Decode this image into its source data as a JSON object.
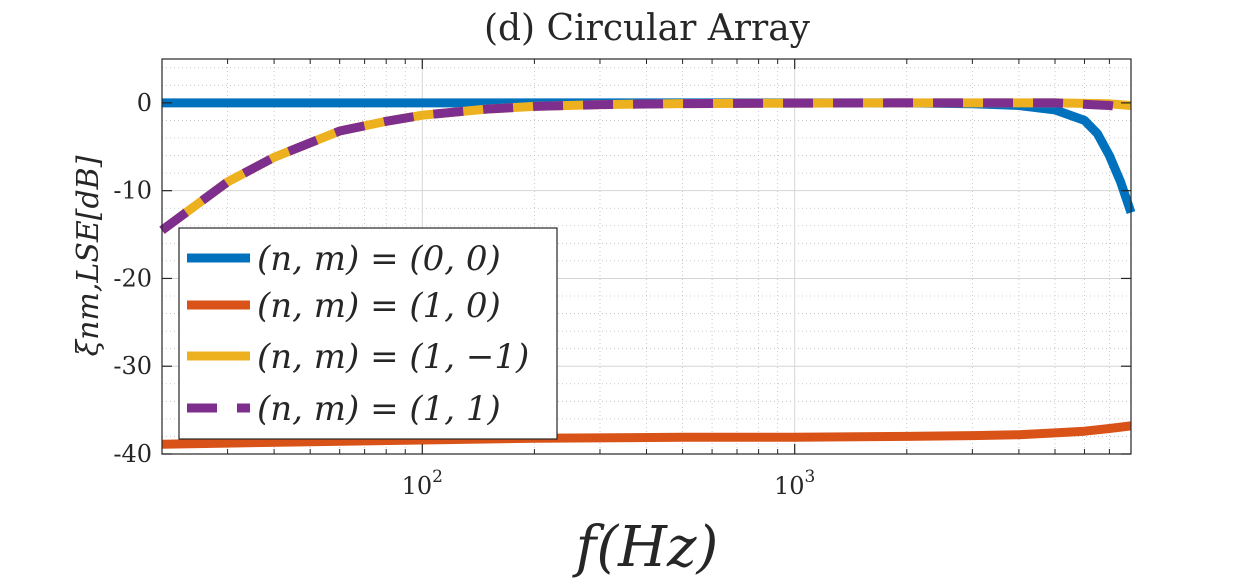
{
  "colors": {
    "blue": "#0072BD",
    "orange": "#D95319",
    "yellow": "#EDB120",
    "purple": "#7E2F8E"
  },
  "chart_data": {
    "type": "line",
    "title": "(d) Circular Array",
    "xlabel": "f(Hz)",
    "ylabel": "ξnm,LSE[dB]",
    "xscale": "log",
    "xlim": [
      20,
      8000
    ],
    "ylim": [
      -40,
      5
    ],
    "grid": true,
    "minor_grid": true,
    "legend_position": "lower-left",
    "x_ticks": [
      {
        "value": 100,
        "base": "10",
        "exp": "2"
      },
      {
        "value": 1000,
        "base": "10",
        "exp": "3"
      }
    ],
    "y_ticks": [
      {
        "value": 0,
        "label": "0"
      },
      {
        "value": -10,
        "label": "-10"
      },
      {
        "value": -20,
        "label": "-20"
      },
      {
        "value": -30,
        "label": "-30"
      },
      {
        "value": -40,
        "label": "-40"
      }
    ],
    "series": [
      {
        "name": "(n, m) = (0, 0)",
        "color": "#0072BD",
        "style": "solid",
        "x": [
          20,
          100,
          500,
          1000,
          2000,
          3000,
          4000,
          5000,
          6000,
          6500,
          7000,
          7500,
          8000
        ],
        "y": [
          0,
          0,
          0,
          0,
          0,
          -0.1,
          -0.3,
          -0.8,
          -2.0,
          -3.5,
          -6.0,
          -9.0,
          -12.5
        ]
      },
      {
        "name": "(n, m) = (1, 0)",
        "color": "#D95319",
        "style": "solid",
        "x": [
          20,
          50,
          100,
          200,
          500,
          1000,
          2000,
          3000,
          4000,
          5000,
          6000,
          7000,
          8000
        ],
        "y": [
          -38.9,
          -38.6,
          -38.4,
          -38.2,
          -38.1,
          -38.1,
          -38.0,
          -37.9,
          -37.8,
          -37.6,
          -37.4,
          -37.1,
          -36.8
        ]
      },
      {
        "name": "(n, m) = (1, −1)",
        "color": "#EDB120",
        "style": "solid",
        "x": [
          20,
          30,
          40,
          60,
          80,
          100,
          150,
          200,
          300,
          500,
          1000,
          2000,
          5000,
          7000,
          8000
        ],
        "y": [
          -14.5,
          -9.0,
          -6.2,
          -3.2,
          -2.1,
          -1.4,
          -0.7,
          -0.4,
          -0.2,
          -0.08,
          -0.02,
          0,
          0,
          -0.1,
          -0.3
        ]
      },
      {
        "name": "(n, m) = (1, 1)",
        "color": "#7E2F8E",
        "style": "dashed",
        "x": [
          20,
          30,
          40,
          60,
          80,
          100,
          150,
          200,
          300,
          500,
          1000,
          2000,
          5000,
          7000,
          8000
        ],
        "y": [
          -14.5,
          -9.0,
          -6.2,
          -3.2,
          -2.1,
          -1.4,
          -0.7,
          -0.4,
          -0.2,
          -0.08,
          -0.02,
          0,
          0,
          -0.3,
          -0.6
        ]
      }
    ]
  }
}
